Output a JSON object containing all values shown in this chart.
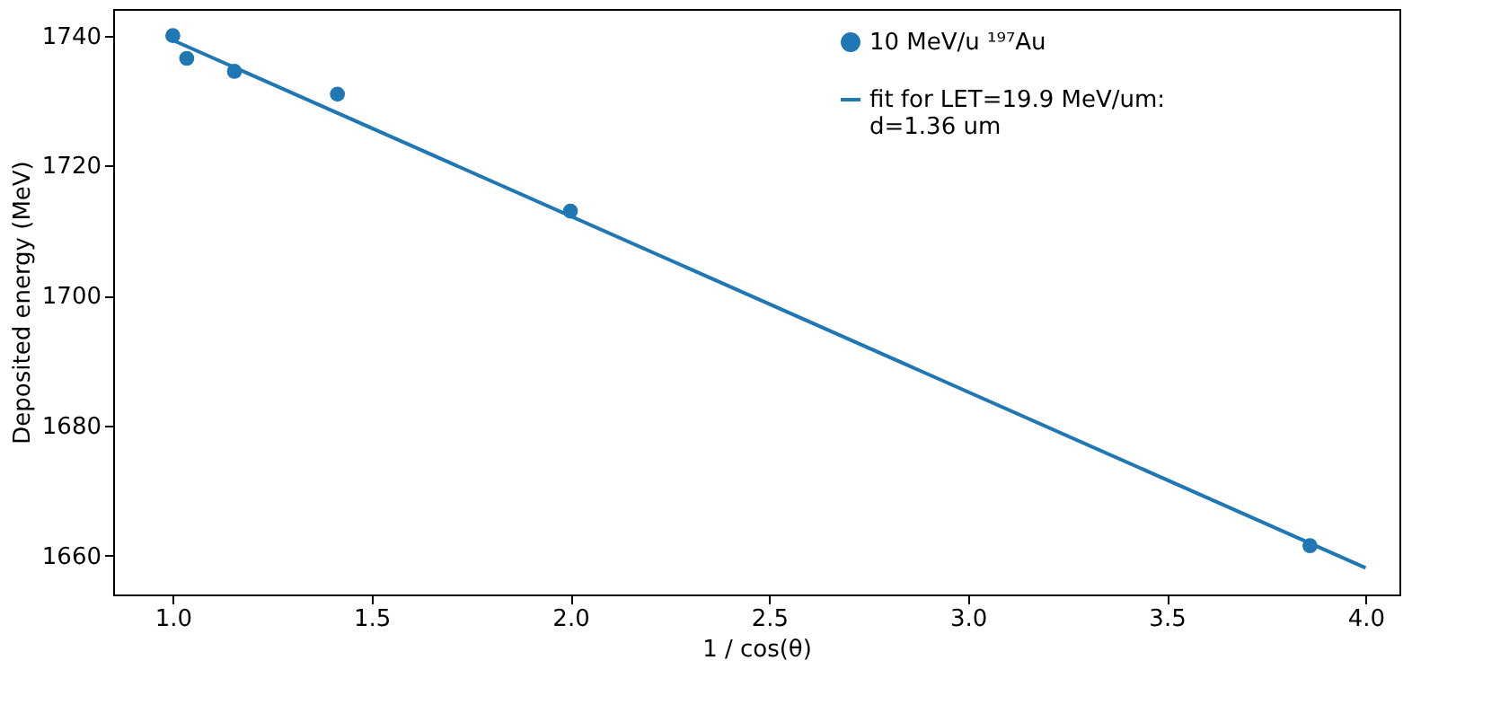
{
  "chart_data": {
    "type": "scatter",
    "xlabel": "1 / cos(θ)",
    "ylabel": "Deposited energy (MeV)",
    "xlim": [
      0.85,
      4.085
    ],
    "ylim": [
      1654,
      1744.1
    ],
    "xticks": [
      {
        "value": 1.0,
        "label": "1.0"
      },
      {
        "value": 1.5,
        "label": "1.5"
      },
      {
        "value": 2.0,
        "label": "2.0"
      },
      {
        "value": 2.5,
        "label": "2.5"
      },
      {
        "value": 3.0,
        "label": "3.0"
      },
      {
        "value": 3.5,
        "label": "3.5"
      },
      {
        "value": 4.0,
        "label": "4.0"
      }
    ],
    "yticks": [
      1660,
      1680,
      1700,
      1720,
      1740
    ],
    "grid": false,
    "legend": "top right",
    "series": [
      {
        "name": "10 MeV/u ¹⁹⁷Au",
        "marker": "circle",
        "color": "#1f77b4",
        "x": [
          1.0,
          1.035,
          1.155,
          1.414,
          2.0,
          3.86
        ],
        "values": [
          1740,
          1736.5,
          1734.5,
          1731,
          1713,
          1661.5
        ]
      },
      {
        "name": "fit for LET=19.9 MeV/um:\n d=1.36 um",
        "type": "line",
        "line_style": "solid",
        "color": "#1f77b4",
        "x": [
          1.0,
          4.0
        ],
        "values": [
          1739.3,
          1658.1
        ]
      }
    ]
  }
}
